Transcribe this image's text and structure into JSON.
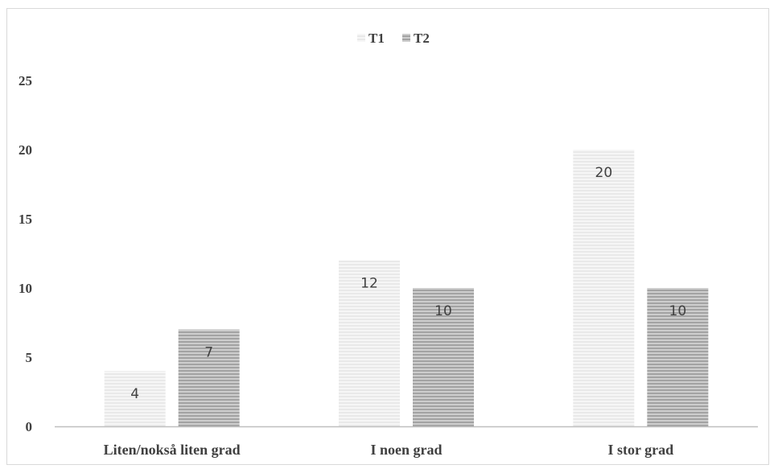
{
  "chart_data": {
    "type": "bar",
    "categories": [
      "Liten/nokså liten grad",
      "I noen grad",
      "I stor grad"
    ],
    "series": [
      {
        "name": "T1",
        "values": [
          4,
          12,
          20
        ],
        "color": "#e6e6e6",
        "stripe": "#f4f4f4"
      },
      {
        "name": "T2",
        "values": [
          7,
          10,
          10
        ],
        "color": "#a8a8a8",
        "stripe": "#cfcfcf"
      }
    ],
    "ylim": [
      0,
      25
    ],
    "yticks": [
      0,
      5,
      10,
      15,
      20,
      25
    ],
    "legend": "top-center",
    "grid": false,
    "data_labels": true
  }
}
